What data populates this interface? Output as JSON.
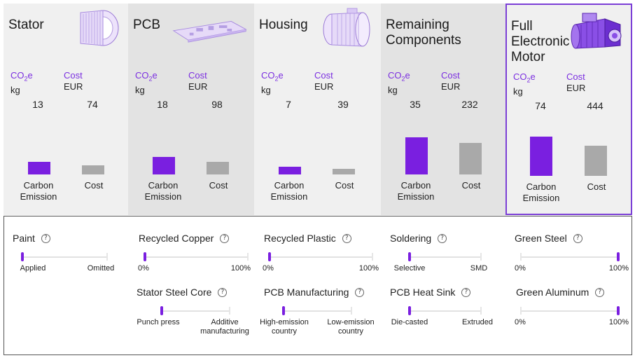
{
  "labels": {
    "co2_main": "CO",
    "co2_sub": "2",
    "co2_e": "e",
    "co2_unit": "kg",
    "cost": "Cost",
    "cost_unit": "EUR",
    "carbon_emission": "Carbon\nEmission",
    "cost_bar": "Cost",
    "help": "?"
  },
  "components": [
    {
      "title": "Stator",
      "co2": 13,
      "cost": 74,
      "image": "stator-image"
    },
    {
      "title": "PCB",
      "co2": 18,
      "cost": 98,
      "image": "pcb-image"
    },
    {
      "title": "Housing",
      "co2": 7,
      "cost": 39,
      "image": "housing-image"
    },
    {
      "title": "Remaining\nComponents",
      "co2": 35,
      "cost": 232,
      "image": ""
    },
    {
      "title": "Full\nElectronic\nMotor",
      "co2": 74,
      "cost": 444,
      "image": "motor-image"
    }
  ],
  "controls": [
    {
      "name": "Paint",
      "left": "Applied",
      "right": "Omitted",
      "value": 0.0
    },
    {
      "name": "Recycled Copper",
      "left": "0%",
      "right": "100%",
      "value": 0.0
    },
    {
      "name": "Recycled Plastic",
      "left": "0%",
      "right": "100%",
      "value": 0.0
    },
    {
      "name": "Soldering",
      "left": "Selective",
      "right": "SMD",
      "value": 0.0
    },
    {
      "name": "Green Steel",
      "left": "0%",
      "right": "100%",
      "value": 1.0
    },
    {
      "name": "Stator Steel Core",
      "left": "Punch press",
      "right": "Additive\nmanufacturing",
      "value": 0.0
    },
    {
      "name": "PCB Manufacturing",
      "left": "High-emission\ncountry",
      "right": "Low-emission\ncountry",
      "value": 0.0
    },
    {
      "name": "PCB Heat Sink",
      "left": "Die-casted",
      "right": "Extruded",
      "value": 0.0
    },
    {
      "name": "Green Aluminum",
      "left": "0%",
      "right": "100%",
      "value": 1.0
    }
  ],
  "colors": {
    "accent": "#7a1fe0",
    "cost_bar": "#a9a9a9"
  }
}
